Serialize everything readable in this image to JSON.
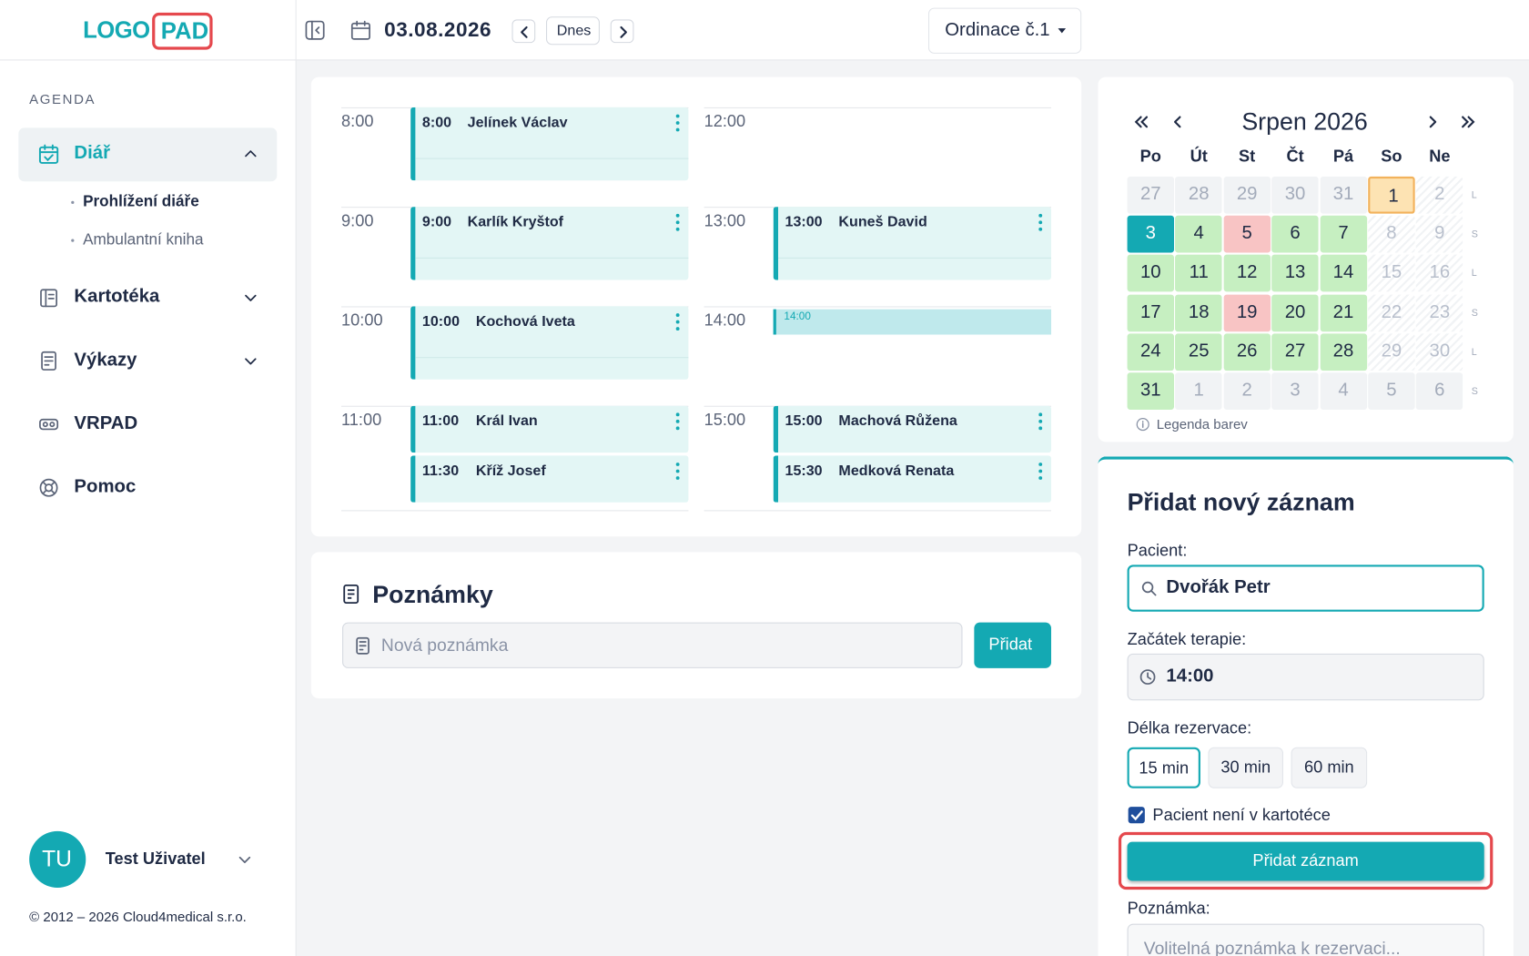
{
  "header": {
    "logo_left": "LOGO",
    "logo_right": "PAD",
    "date": "03.08.2026",
    "today": "Dnes",
    "office": "Ordinace č.1"
  },
  "sidebar": {
    "section": "AGENDA",
    "menu": [
      {
        "label": "Diář",
        "children": [
          "Prohlížení diáře",
          "Ambulantní kniha"
        ]
      },
      {
        "label": "Kartotéka"
      },
      {
        "label": "Výkazy"
      },
      {
        "label": "VRPAD"
      },
      {
        "label": "Pomoc"
      }
    ],
    "user_initials": "TU",
    "user_name": "Test Uživatel",
    "copyright": "© 2012 – 2026 Cloud4medical s.r.o."
  },
  "schedule": {
    "columns": [
      [
        {
          "hour": "8:00",
          "items": [
            {
              "time": "8:00",
              "name": "Jelínek Václav"
            }
          ]
        },
        {
          "hour": "9:00",
          "items": [
            {
              "time": "9:00",
              "name": "Karlík Kryštof"
            }
          ]
        },
        {
          "hour": "10:00",
          "items": [
            {
              "time": "10:00",
              "name": "Kochová Iveta"
            }
          ]
        },
        {
          "hour": "11:00",
          "items": [
            {
              "time": "11:00",
              "name": "Král Ivan"
            },
            {
              "time": "11:30",
              "name": "Kříž Josef"
            }
          ]
        }
      ],
      [
        {
          "hour": "12:00",
          "items": []
        },
        {
          "hour": "13:00",
          "items": [
            {
              "time": "13:00",
              "name": "Kuneš David"
            }
          ]
        },
        {
          "hour": "14:00",
          "items": [
            {
              "time": "14:00",
              "kind": "new"
            }
          ]
        },
        {
          "hour": "15:00",
          "items": [
            {
              "time": "15:00",
              "name": "Machová Růžena"
            },
            {
              "time": "15:30",
              "name": "Medková Renata"
            }
          ]
        }
      ]
    ]
  },
  "notes": {
    "title": "Poznámky",
    "placeholder": "Nová poznámka",
    "button": "Přidat"
  },
  "calendar": {
    "title": "Srpen 2026",
    "weekdays": [
      "Po",
      "Út",
      "St",
      "Čt",
      "Pá",
      "So",
      "Ne"
    ],
    "weeks": [
      {
        "tag": "L",
        "days": [
          {
            "d": "27",
            "s": "other"
          },
          {
            "d": "28",
            "s": "other"
          },
          {
            "d": "29",
            "s": "other"
          },
          {
            "d": "30",
            "s": "other"
          },
          {
            "d": "31",
            "s": "other"
          },
          {
            "d": "1",
            "s": "selected"
          },
          {
            "d": "2",
            "s": "off"
          }
        ]
      },
      {
        "tag": "S",
        "days": [
          {
            "d": "3",
            "s": "today"
          },
          {
            "d": "4",
            "s": "free"
          },
          {
            "d": "5",
            "s": "busy"
          },
          {
            "d": "6",
            "s": "free"
          },
          {
            "d": "7",
            "s": "free"
          },
          {
            "d": "8",
            "s": "off"
          },
          {
            "d": "9",
            "s": "off"
          }
        ]
      },
      {
        "tag": "L",
        "days": [
          {
            "d": "10",
            "s": "free"
          },
          {
            "d": "11",
            "s": "free"
          },
          {
            "d": "12",
            "s": "free"
          },
          {
            "d": "13",
            "s": "free"
          },
          {
            "d": "14",
            "s": "free"
          },
          {
            "d": "15",
            "s": "off"
          },
          {
            "d": "16",
            "s": "off"
          }
        ]
      },
      {
        "tag": "S",
        "days": [
          {
            "d": "17",
            "s": "free"
          },
          {
            "d": "18",
            "s": "free"
          },
          {
            "d": "19",
            "s": "busy"
          },
          {
            "d": "20",
            "s": "free"
          },
          {
            "d": "21",
            "s": "free"
          },
          {
            "d": "22",
            "s": "off"
          },
          {
            "d": "23",
            "s": "off"
          }
        ]
      },
      {
        "tag": "L",
        "days": [
          {
            "d": "24",
            "s": "free"
          },
          {
            "d": "25",
            "s": "free"
          },
          {
            "d": "26",
            "s": "free"
          },
          {
            "d": "27",
            "s": "free"
          },
          {
            "d": "28",
            "s": "free"
          },
          {
            "d": "29",
            "s": "off"
          },
          {
            "d": "30",
            "s": "off"
          }
        ]
      },
      {
        "tag": "S",
        "days": [
          {
            "d": "31",
            "s": "free"
          },
          {
            "d": "1",
            "s": "other"
          },
          {
            "d": "2",
            "s": "other"
          },
          {
            "d": "3",
            "s": "other"
          },
          {
            "d": "4",
            "s": "other"
          },
          {
            "d": "5",
            "s": "other"
          },
          {
            "d": "6",
            "s": "other"
          }
        ]
      }
    ],
    "legend": "Legenda barev"
  },
  "form": {
    "title": "Přidat nový záznam",
    "patient_label": "Pacient:",
    "patient_value": "Dvořák Petr",
    "start_label": "Začátek terapie:",
    "start_value": "14:00",
    "duration_label": "Délka rezervace:",
    "durations": [
      "15 min",
      "30 min",
      "60 min"
    ],
    "checkbox_label": "Pacient není v kartotéce",
    "submit": "Přidat záznam",
    "note_label": "Poznámka:",
    "note_placeholder": "Volitelná poznámka k rezervaci..."
  }
}
